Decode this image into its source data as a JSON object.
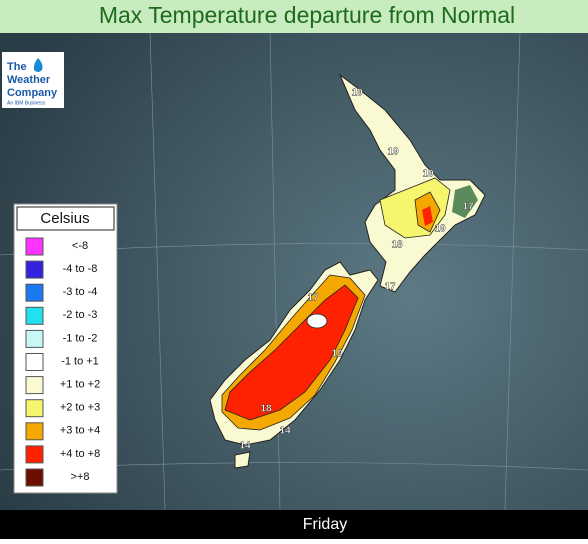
{
  "header": {
    "title": "Max Temperature departure from Normal"
  },
  "logo": {
    "line1": "The",
    "line2": "Weather",
    "line3": "Company",
    "tagline": "An IBM Business"
  },
  "legend": {
    "title": "Celsius",
    "entries": [
      {
        "label": "<-8",
        "color": "#ff33ff"
      },
      {
        "label": "-4 to -8",
        "color": "#3322dd"
      },
      {
        "label": "-3 to -4",
        "color": "#1a78f0"
      },
      {
        "label": "-2 to -3",
        "color": "#22e0ee"
      },
      {
        "label": "-1 to -2",
        "color": "#c8f7f7"
      },
      {
        "label": "-1 to +1",
        "color": "#ffffff"
      },
      {
        "label": "+1 to +2",
        "color": "#fafad2"
      },
      {
        "label": "+2 to +3",
        "color": "#f5f56e"
      },
      {
        "label": "+3 to +4",
        "color": "#f5a800"
      },
      {
        "label": "+4 to +8",
        "color": "#ff2200"
      },
      {
        "label": ">+8",
        "color": "#6b1000"
      }
    ]
  },
  "contour_labels": [
    19,
    19,
    19,
    17,
    19,
    18,
    17,
    17,
    19,
    18,
    14,
    14
  ],
  "footer": {
    "day": "Friday"
  }
}
